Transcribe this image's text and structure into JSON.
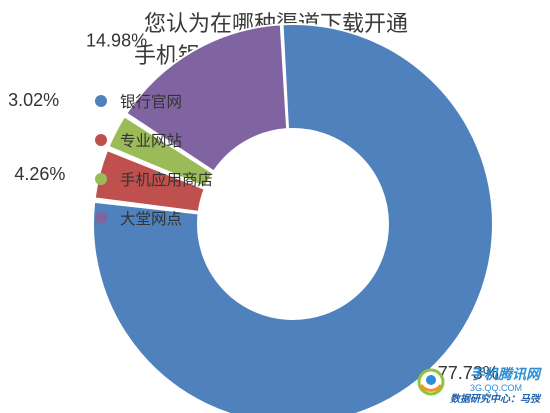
{
  "chart_data": {
    "type": "pie",
    "title": [
      "您认为在哪种渠道下载开通",
      "手机银行客户端最安全？"
    ],
    "categories": [
      "银行官网",
      "专业网站",
      "手机应用商店",
      "大堂网点"
    ],
    "values": [
      77.73,
      4.26,
      3.02,
      14.98
    ],
    "labels": [
      "77.73%",
      "4.26%",
      "3.02%",
      "14.98%"
    ],
    "colors": [
      "#4f81bd",
      "#c0504d",
      "#9bbb59",
      "#8064a2"
    ],
    "legend": "top-left",
    "donut": true
  },
  "brand": {
    "name": "手机腾讯网",
    "domain": "3G.QQ.COM",
    "credit": "数据研究中心：马弢"
  }
}
